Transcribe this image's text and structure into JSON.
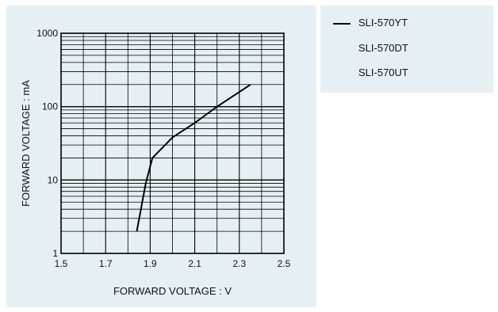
{
  "chart_data": {
    "type": "line",
    "xlabel": "FORWARD VOLTAGE : V",
    "ylabel": "FORWARD VOLTAGE : mA",
    "xlim": [
      1.5,
      2.5
    ],
    "ylim": [
      1,
      1000
    ],
    "yscale": "log",
    "grid": true,
    "xticks": [
      "1.5",
      "1.7",
      "1.9",
      "2.1",
      "2.3",
      "2.5"
    ],
    "yticks": [
      "1",
      "10",
      "100",
      "1000"
    ],
    "legend": {
      "placement": "right",
      "entries": [
        {
          "label": "SLI-570YT",
          "has_line": true
        },
        {
          "label": "SLI-570DT",
          "has_line": false
        },
        {
          "label": "SLI-570UT",
          "has_line": false
        }
      ]
    },
    "series": [
      {
        "name": "SLI-570YT",
        "color": "#000000",
        "x": [
          1.84,
          1.88,
          1.91,
          2.0,
          2.1,
          2.2,
          2.35
        ],
        "y": [
          2,
          9,
          20,
          38,
          60,
          100,
          200
        ]
      }
    ]
  }
}
